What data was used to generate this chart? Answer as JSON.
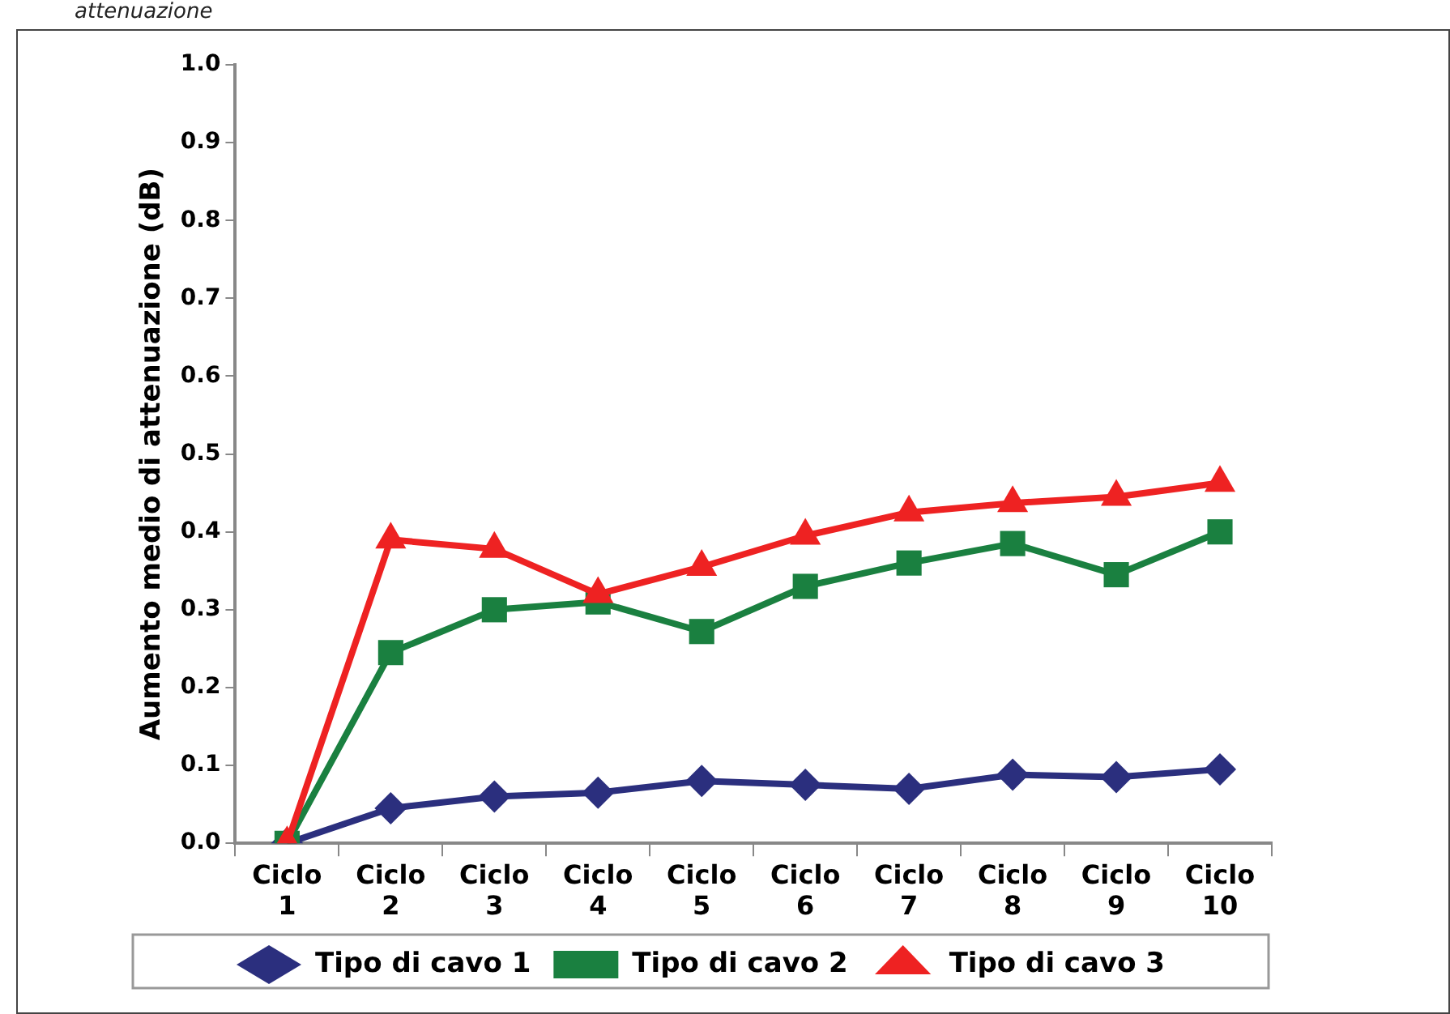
{
  "chart_data": {
    "type": "line",
    "ylabel": "Aumento medio di attenuazione (dB)",
    "annotations": [
      "attenuazione"
    ],
    "categories": [
      "Ciclo 1",
      "Ciclo 2",
      "Ciclo 3",
      "Ciclo 4",
      "Ciclo 5",
      "Ciclo 6",
      "Ciclo 7",
      "Ciclo 8",
      "Ciclo 9",
      "Ciclo 10"
    ],
    "series": [
      {
        "name": "Tipo di cavo 1",
        "color": "#2b2f7e",
        "marker": "diamond",
        "values": [
          0,
          0.045,
          0.06,
          0.065,
          0.08,
          0.075,
          0.07,
          0.088,
          0.085,
          0.095
        ]
      },
      {
        "name": "Tipo di cavo 2",
        "color": "#1a8040",
        "marker": "square",
        "values": [
          0,
          0.245,
          0.3,
          0.31,
          0.272,
          0.33,
          0.36,
          0.385,
          0.345,
          0.4
        ]
      },
      {
        "name": "Tipo di cavo 3",
        "color": "#ee2222",
        "marker": "triangle",
        "values": [
          0,
          0.39,
          0.378,
          0.32,
          0.355,
          0.395,
          0.425,
          0.437,
          0.445,
          0.463
        ]
      }
    ],
    "ylim": [
      0,
      1
    ],
    "yticks": [
      {
        "value": 0,
        "label": "0.0"
      },
      0.1,
      0.2,
      0.3,
      0.4,
      0.5,
      0.6,
      0.7,
      0.8,
      0.9,
      {
        "value": 1,
        "label": "1.0"
      }
    ],
    "grid": false,
    "legend": "bottom",
    "line_style": "solid"
  }
}
